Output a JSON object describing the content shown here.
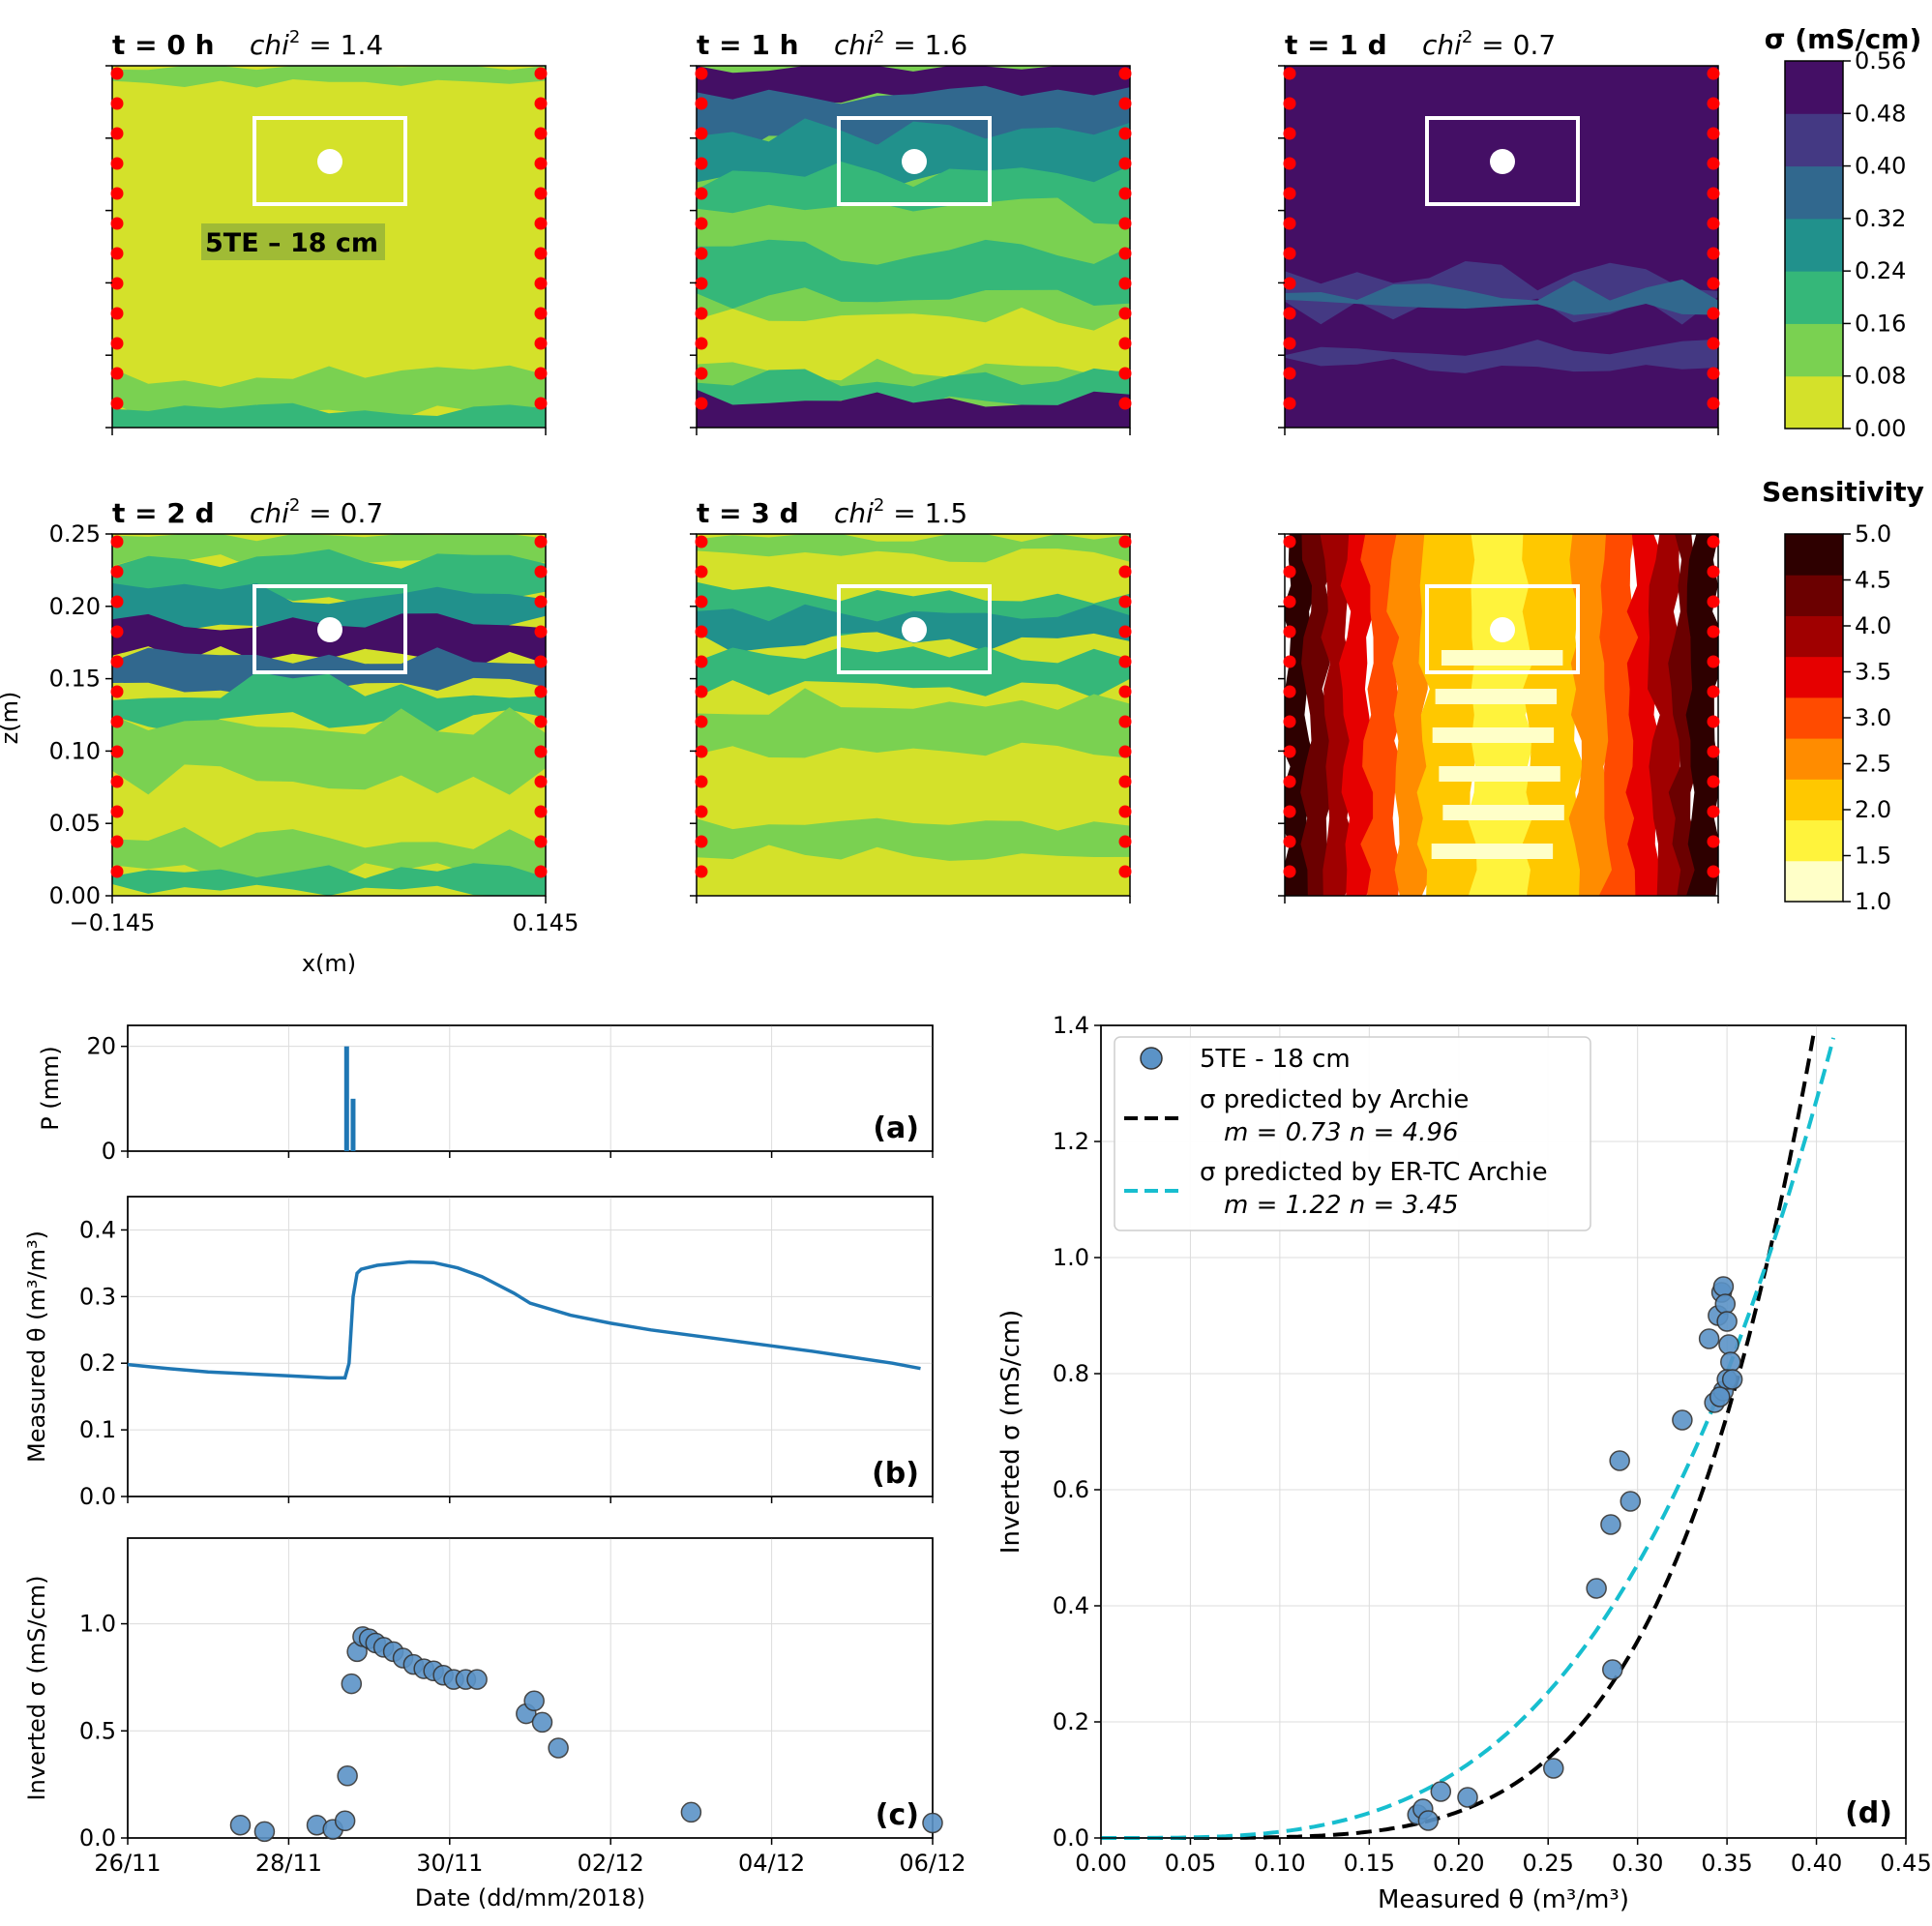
{
  "maps": {
    "panels": [
      {
        "time": "t = 0 h",
        "chi_label": "chi",
        "chi_sup": "2",
        "chi_value": " =  1.4",
        "sensor_label": "5TE – 18 cm"
      },
      {
        "time": "t = 1 h",
        "chi_label": "chi",
        "chi_sup": "2",
        "chi_value": " =  1.6"
      },
      {
        "time": "t = 1 d",
        "chi_label": "chi",
        "chi_sup": "2",
        "chi_value": " =  0.7"
      },
      {
        "time": "t = 2 d",
        "chi_label": "chi",
        "chi_sup": "2",
        "chi_value": " =  0.7"
      },
      {
        "time": "t = 3 d",
        "chi_label": "chi",
        "chi_sup": "2",
        "chi_value": " =  1.5"
      },
      {
        "time": ""
      }
    ],
    "xlabel": "x(m)",
    "ylabel": "z(m)",
    "xticks": [
      "−0.145",
      "0.145"
    ],
    "yticks": [
      "0.00",
      "0.05",
      "0.10",
      "0.15",
      "0.20",
      "0.25"
    ],
    "sigma_colorbar": {
      "title": "σ (mS/cm)",
      "ticks": [
        "0.00",
        "0.08",
        "0.16",
        "0.24",
        "0.32",
        "0.40",
        "0.48",
        "0.56"
      ],
      "colors": [
        "#d4e12a",
        "#7ad151",
        "#35b779",
        "#21918c",
        "#31688e",
        "#443983",
        "#440f65"
      ]
    },
    "sensitivity_colorbar": {
      "title": "Sensitivity",
      "ticks": [
        "1.0",
        "1.5",
        "2.0",
        "2.5",
        "3.0",
        "3.5",
        "4.0",
        "4.5",
        "5.0"
      ],
      "colors": [
        "#ffffc8",
        "#fff33c",
        "#ffc800",
        "#ff8c00",
        "#ff4b00",
        "#e60000",
        "#a00000",
        "#6b0000",
        "#2e0000"
      ]
    }
  },
  "chart_data": [
    {
      "id": "a",
      "type": "bar",
      "panel_label": "(a)",
      "ylabel": "P (mm)",
      "xlim": [
        0,
        10
      ],
      "ylim": [
        0,
        24
      ],
      "yticks": [
        "0",
        "20"
      ],
      "x": [
        2.72,
        2.8
      ],
      "values": [
        20,
        10
      ],
      "color": "#1f77b4"
    },
    {
      "id": "b",
      "type": "line",
      "panel_label": "(b)",
      "ylabel": "Measured θ (m³/m³)",
      "xlim": [
        0,
        10
      ],
      "ylim": [
        0,
        0.45
      ],
      "yticks": [
        "0.0",
        "0.1",
        "0.2",
        "0.3",
        "0.4"
      ],
      "x": [
        0,
        0.5,
        1,
        1.5,
        2,
        2.5,
        2.7,
        2.75,
        2.8,
        2.85,
        2.9,
        3.1,
        3.5,
        3.8,
        4.1,
        4.4,
        4.8,
        5.0,
        5.5,
        6,
        6.5,
        7,
        7.5,
        8,
        8.5,
        9,
        9.5,
        9.85
      ],
      "values": [
        0.198,
        0.192,
        0.187,
        0.184,
        0.181,
        0.178,
        0.178,
        0.2,
        0.3,
        0.335,
        0.341,
        0.347,
        0.352,
        0.351,
        0.343,
        0.33,
        0.305,
        0.29,
        0.272,
        0.26,
        0.25,
        0.242,
        0.234,
        0.226,
        0.218,
        0.209,
        0.2,
        0.192
      ],
      "color": "#1f77b4"
    },
    {
      "id": "c",
      "type": "scatter",
      "panel_label": "(c)",
      "ylabel": "Inverted σ (mS/cm)",
      "xlabel": "Date (dd/mm/2018)",
      "xlim": [
        0,
        10
      ],
      "ylim": [
        0,
        1.4
      ],
      "yticks": [
        "0.0",
        "0.5",
        "1.0"
      ],
      "xticks": [
        "26/11",
        "28/11",
        "30/11",
        "02/12",
        "04/12",
        "06/12"
      ],
      "x": [
        1.4,
        1.7,
        2.35,
        2.55,
        2.7,
        2.73,
        2.78,
        2.85,
        2.92,
        3.0,
        3.08,
        3.18,
        3.3,
        3.42,
        3.55,
        3.68,
        3.8,
        3.92,
        4.05,
        4.2,
        4.34,
        4.95,
        5.05,
        5.15,
        5.35,
        7.0,
        10.0
      ],
      "values": [
        0.06,
        0.03,
        0.06,
        0.04,
        0.08,
        0.29,
        0.72,
        0.87,
        0.94,
        0.93,
        0.91,
        0.89,
        0.87,
        0.84,
        0.81,
        0.79,
        0.78,
        0.76,
        0.74,
        0.74,
        0.74,
        0.58,
        0.64,
        0.54,
        0.42,
        0.12,
        0.07
      ],
      "color": "#5b93c7"
    },
    {
      "id": "d",
      "type": "scatter",
      "panel_label": "(d)",
      "xlabel": "Measured θ (m³/m³)",
      "ylabel": "Inverted σ (mS/cm)",
      "xlim": [
        0,
        0.45
      ],
      "ylim": [
        0,
        1.4
      ],
      "xticks": [
        "0.00",
        "0.05",
        "0.10",
        "0.15",
        "0.20",
        "0.25",
        "0.30",
        "0.35",
        "0.40",
        "0.45"
      ],
      "yticks": [
        "0.0",
        "0.2",
        "0.4",
        "0.6",
        "0.8",
        "1.0",
        "1.2",
        "1.4"
      ],
      "x": [
        0.177,
        0.18,
        0.183,
        0.19,
        0.205,
        0.253,
        0.277,
        0.285,
        0.286,
        0.29,
        0.296,
        0.325,
        0.34,
        0.343,
        0.345,
        0.347,
        0.348,
        0.349,
        0.35,
        0.351,
        0.352,
        0.348,
        0.35,
        0.353,
        0.346
      ],
      "values": [
        0.04,
        0.05,
        0.03,
        0.08,
        0.07,
        0.12,
        0.43,
        0.54,
        0.29,
        0.65,
        0.58,
        0.72,
        0.86,
        0.75,
        0.9,
        0.94,
        0.95,
        0.92,
        0.89,
        0.85,
        0.82,
        0.77,
        0.79,
        0.79,
        0.76
      ],
      "color": "#5b93c7",
      "legend": [
        {
          "label": "5TE - 18 cm",
          "kind": "marker",
          "color": "#5b93c7"
        },
        {
          "label": "σ predicted by Archie",
          "sub": "m = 0.73   n = 4.96",
          "kind": "dash",
          "color": "#000000"
        },
        {
          "label": "σ predicted by ER-TC Archie",
          "sub": "m = 1.22   n = 3.45",
          "kind": "dash",
          "color": "#17becf"
        }
      ],
      "curves": [
        {
          "name": "Archie",
          "a": 133.0,
          "n": 4.96,
          "color": "#000000"
        },
        {
          "name": "ER-TC Archie",
          "a": 30.0,
          "n": 3.45,
          "color": "#17becf"
        }
      ]
    }
  ]
}
